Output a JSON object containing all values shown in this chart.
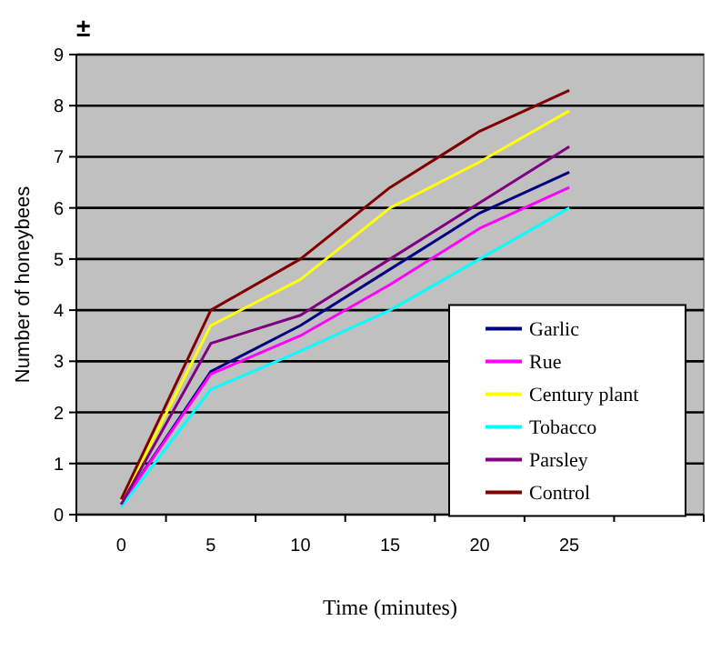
{
  "chart_data": {
    "type": "line",
    "xlabel": "Time (minutes)",
    "ylabel": "Number of honeybees",
    "annotations": [
      "±"
    ],
    "categories": [
      "0",
      "5",
      "10",
      "15",
      "20",
      "25",
      null
    ],
    "ylim": [
      0,
      9
    ],
    "yticks": [
      0,
      1,
      2,
      3,
      4,
      5,
      6,
      7,
      8,
      9
    ],
    "grid": "y",
    "legend": "right",
    "marker": "none",
    "series": [
      {
        "name": "Garlic",
        "color": "#000080",
        "values": [
          0.2,
          2.8,
          3.7,
          4.8,
          5.9,
          6.7,
          null
        ]
      },
      {
        "name": "Rue",
        "color": "#ff00ff",
        "values": [
          0.2,
          2.75,
          3.5,
          4.5,
          5.6,
          6.4,
          null
        ]
      },
      {
        "name": "Century plant",
        "color": "#ffff00",
        "values": [
          0.25,
          3.7,
          4.6,
          6.0,
          6.9,
          7.9,
          null
        ]
      },
      {
        "name": "Tobacco",
        "color": "#00ffff",
        "values": [
          0.15,
          2.45,
          3.2,
          4.0,
          5.0,
          6.0,
          null
        ]
      },
      {
        "name": "Parsley",
        "color": "#800080",
        "values": [
          0.2,
          3.35,
          3.9,
          5.0,
          6.1,
          7.2,
          null
        ]
      },
      {
        "name": "Control",
        "color": "#800000",
        "values": [
          0.3,
          4.0,
          5.0,
          6.4,
          7.5,
          8.3,
          null
        ]
      }
    ]
  }
}
